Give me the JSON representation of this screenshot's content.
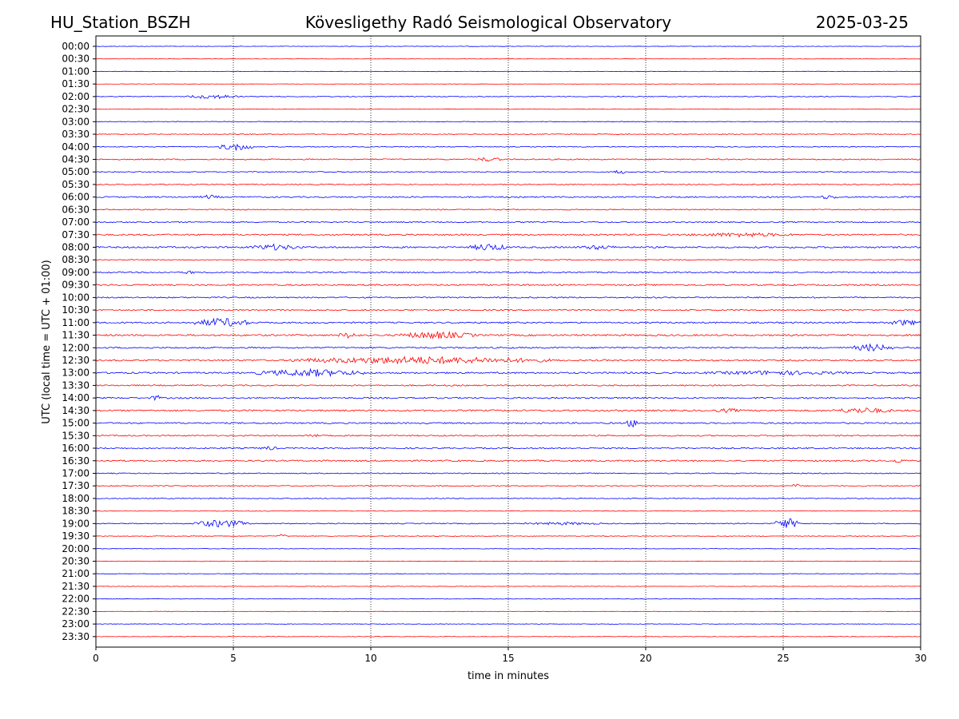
{
  "header": {
    "station": "HU_Station_BSZH",
    "observatory": "Kövesligethy Radó Seismological Observatory",
    "date": "2025-03-25"
  },
  "chart_data": {
    "type": "line",
    "title": "Kövesligethy Radó Seismological Observatory",
    "xlabel": "time in minutes",
    "ylabel": "UTC (local time = UTC + 01:00)",
    "xlim": [
      0,
      30
    ],
    "x_ticks": [
      "0",
      "5",
      "10",
      "15",
      "20",
      "25",
      "30"
    ],
    "x_grid": true,
    "row_labels": [
      "00:00",
      "00:30",
      "01:00",
      "01:30",
      "02:00",
      "02:30",
      "03:00",
      "03:30",
      "04:00",
      "04:30",
      "05:00",
      "05:30",
      "06:00",
      "06:30",
      "07:00",
      "07:30",
      "08:00",
      "08:30",
      "09:00",
      "09:30",
      "10:00",
      "10:30",
      "11:00",
      "11:30",
      "12:00",
      "12:30",
      "13:00",
      "13:30",
      "14:00",
      "14:30",
      "15:00",
      "15:30",
      "16:00",
      "16:30",
      "17:00",
      "17:30",
      "18:00",
      "18:30",
      "19:00",
      "19:30",
      "20:00",
      "20:30",
      "21:00",
      "21:30",
      "22:00",
      "22:30",
      "23:00",
      "23:30"
    ],
    "colors": {
      "even_rows": "#0000ff",
      "odd_rows": "#ff0000"
    },
    "row_noise_level": [
      0.3,
      0.2,
      0.3,
      0.2,
      0.5,
      0.3,
      0.4,
      0.5,
      0.5,
      0.7,
      0.6,
      0.6,
      0.8,
      0.6,
      0.7,
      0.9,
      1.0,
      0.6,
      0.8,
      0.9,
      0.8,
      0.8,
      0.9,
      1.0,
      0.9,
      1.0,
      1.0,
      0.8,
      0.9,
      1.0,
      0.9,
      0.8,
      0.8,
      0.9,
      0.6,
      0.6,
      0.5,
      0.4,
      0.6,
      0.4,
      0.3,
      0.3,
      0.3,
      0.3,
      0.3,
      0.3,
      0.3,
      0.3
    ],
    "events": [
      {
        "row": 4,
        "start": 3.3,
        "end": 5.2,
        "amp": 3
      },
      {
        "row": 8,
        "start": 4.5,
        "end": 5.7,
        "amp": 5
      },
      {
        "row": 9,
        "start": 13.8,
        "end": 14.8,
        "amp": 3
      },
      {
        "row": 10,
        "start": 18.8,
        "end": 19.3,
        "amp": 3
      },
      {
        "row": 12,
        "start": 3.8,
        "end": 4.5,
        "amp": 3
      },
      {
        "row": 12,
        "start": 26.3,
        "end": 27.0,
        "amp": 3
      },
      {
        "row": 15,
        "start": 21.5,
        "end": 25.5,
        "amp": 3
      },
      {
        "row": 16,
        "start": 5.5,
        "end": 7.5,
        "amp": 4
      },
      {
        "row": 16,
        "start": 13.6,
        "end": 15.0,
        "amp": 5
      },
      {
        "row": 16,
        "start": 17.5,
        "end": 19.0,
        "amp": 3
      },
      {
        "row": 18,
        "start": 3.2,
        "end": 3.6,
        "amp": 3
      },
      {
        "row": 22,
        "start": 3.6,
        "end": 5.6,
        "amp": 6
      },
      {
        "row": 22,
        "start": 28.8,
        "end": 30.0,
        "amp": 4
      },
      {
        "row": 23,
        "start": 8.8,
        "end": 9.6,
        "amp": 4
      },
      {
        "row": 23,
        "start": 11.0,
        "end": 13.8,
        "amp": 5
      },
      {
        "row": 24,
        "start": 27.5,
        "end": 29.0,
        "amp": 5
      },
      {
        "row": 25,
        "start": 7.0,
        "end": 16.5,
        "amp": 5
      },
      {
        "row": 26,
        "start": 5.8,
        "end": 9.8,
        "amp": 5
      },
      {
        "row": 26,
        "start": 22.0,
        "end": 27.5,
        "amp": 3
      },
      {
        "row": 28,
        "start": 2.0,
        "end": 2.4,
        "amp": 4
      },
      {
        "row": 29,
        "start": 22.5,
        "end": 23.5,
        "amp": 3
      },
      {
        "row": 29,
        "start": 26.8,
        "end": 29.0,
        "amp": 4
      },
      {
        "row": 30,
        "start": 19.3,
        "end": 19.7,
        "amp": 6
      },
      {
        "row": 31,
        "start": 7.6,
        "end": 8.1,
        "amp": 3
      },
      {
        "row": 32,
        "start": 6.0,
        "end": 6.6,
        "amp": 3
      },
      {
        "row": 33,
        "start": 28.9,
        "end": 29.4,
        "amp": 3
      },
      {
        "row": 35,
        "start": 25.3,
        "end": 25.6,
        "amp": 3
      },
      {
        "row": 38,
        "start": 3.5,
        "end": 5.6,
        "amp": 5
      },
      {
        "row": 38,
        "start": 15.5,
        "end": 18.5,
        "amp": 2
      },
      {
        "row": 38,
        "start": 24.7,
        "end": 25.6,
        "amp": 7
      },
      {
        "row": 39,
        "start": 6.6,
        "end": 6.9,
        "amp": 3
      }
    ]
  }
}
